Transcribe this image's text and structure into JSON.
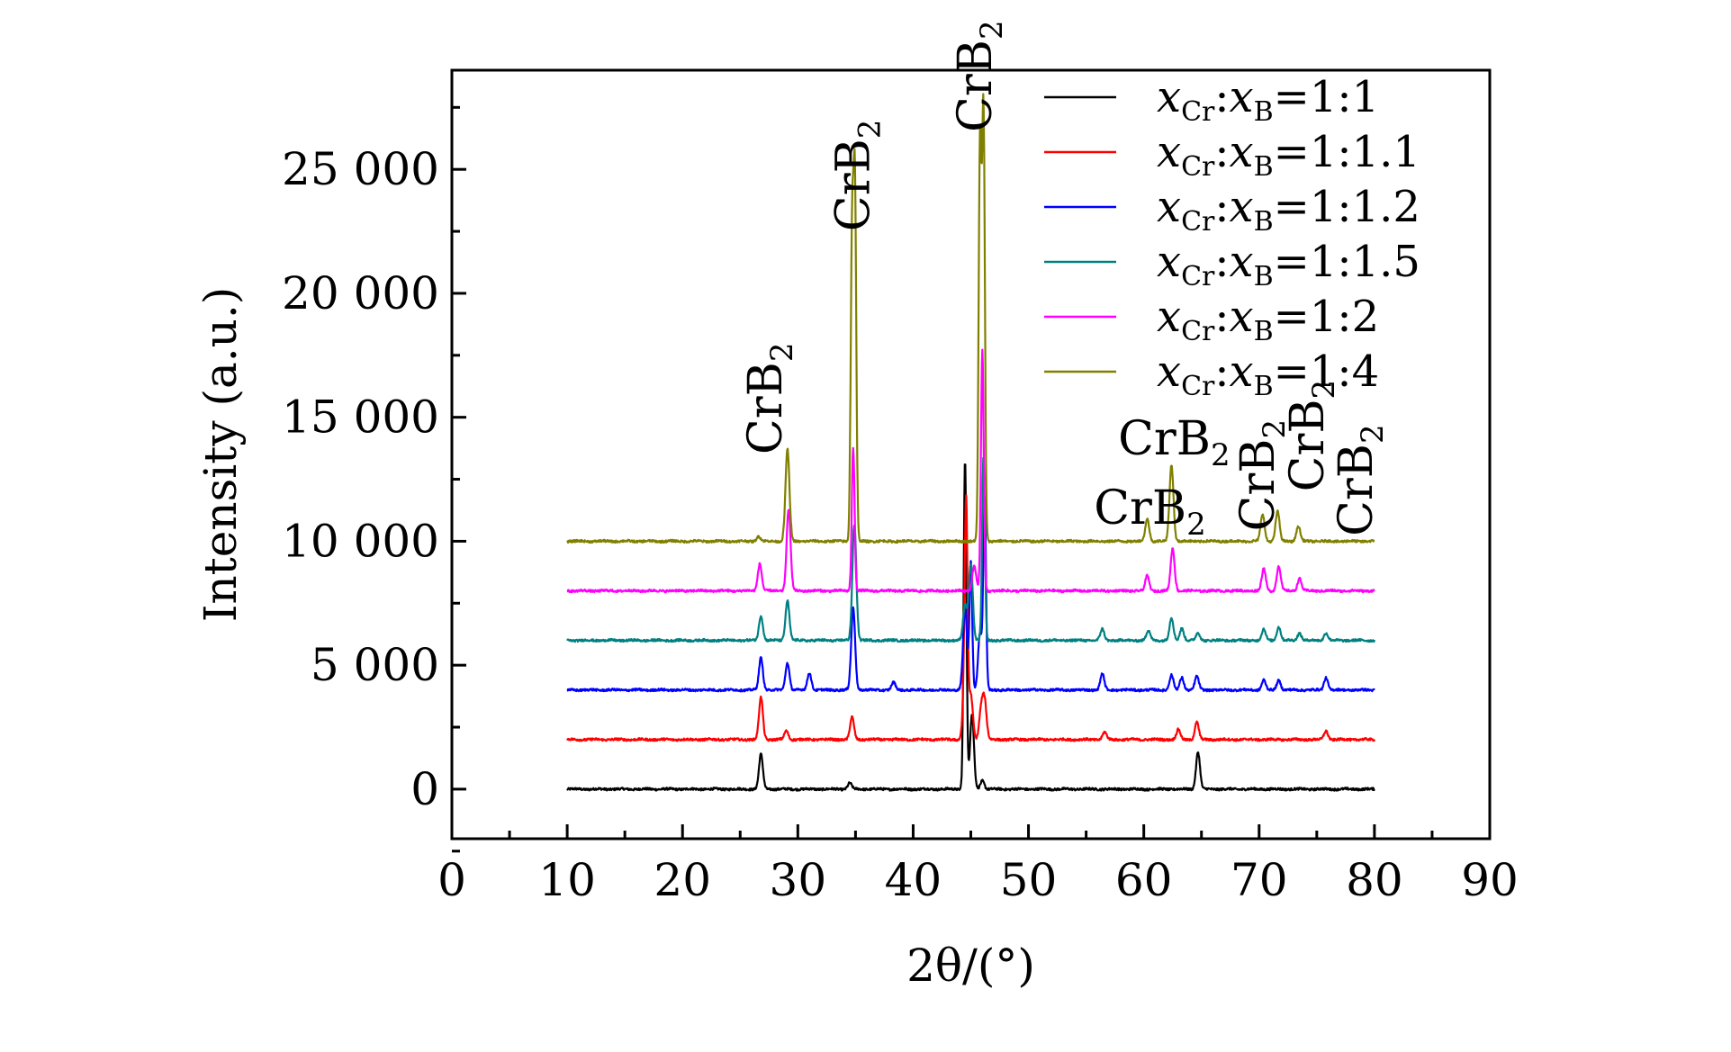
{
  "chart_data": {
    "type": "line",
    "xlabel": "2θ/(°)",
    "ylabel": "Intensity (a.u.)",
    "xlim": [
      0,
      90
    ],
    "ylim": [
      -2000,
      29000
    ],
    "xticks": [
      0,
      10,
      20,
      30,
      40,
      50,
      60,
      70,
      80,
      90
    ],
    "xtick_labels": [
      "0",
      "10",
      "20",
      "30",
      "40",
      "50",
      "60",
      "70",
      "80",
      "90"
    ],
    "yticks": [
      0,
      5000,
      10000,
      15000,
      20000,
      25000
    ],
    "ytick_labels": [
      "0",
      "5 000",
      "10 000",
      "15 000",
      "20 000",
      "25 000"
    ],
    "legend_position": "top-right",
    "legend_prefix": {
      "x1": "x",
      "sub1": "Cr",
      "sep": ":",
      "x2": "x",
      "sub2": "B"
    },
    "annotation_main": "CrB",
    "annotation_sub": "2",
    "annotations": [
      {
        "x": 27.0,
        "y": 13500,
        "rotated": true
      },
      {
        "x": 34.6,
        "y": 22500,
        "rotated": true
      },
      {
        "x": 45.2,
        "y": 26500,
        "rotated": true
      },
      {
        "x": 60.2,
        "y": 10700,
        "rotated": false
      },
      {
        "x": 62.3,
        "y": 13500,
        "rotated": false
      },
      {
        "x": 69.7,
        "y": 10400,
        "rotated": true
      },
      {
        "x": 74.0,
        "y": 12000,
        "rotated": true
      },
      {
        "x": 78.2,
        "y": 10200,
        "rotated": true
      }
    ],
    "series": [
      {
        "name": "=1:1",
        "color": "#000000",
        "baseline": 0,
        "x_range": [
          10,
          80
        ],
        "peaks": [
          [
            26.8,
            1400
          ],
          [
            34.5,
            250
          ],
          [
            44.5,
            13300
          ],
          [
            45.1,
            3000
          ],
          [
            46.0,
            350
          ],
          [
            64.7,
            1500
          ]
        ]
      },
      {
        "name": "=1:1.1",
        "color": "#ff0000",
        "baseline": 2000,
        "x_range": [
          10,
          80
        ],
        "peaks": [
          [
            26.8,
            1700
          ],
          [
            29.0,
            350
          ],
          [
            34.7,
            900
          ],
          [
            44.5,
            2600
          ],
          [
            44.6,
            7500
          ],
          [
            45.0,
            1800
          ],
          [
            45.9,
            1200
          ],
          [
            46.2,
            1500
          ],
          [
            56.6,
            300
          ],
          [
            63.0,
            400
          ],
          [
            64.6,
            700
          ],
          [
            75.8,
            350
          ]
        ]
      },
      {
        "name": "=1:1.2",
        "color": "#0000ff",
        "baseline": 4000,
        "x_range": [
          10,
          80
        ],
        "peaks": [
          [
            26.8,
            1300
          ],
          [
            29.1,
            1100
          ],
          [
            31.0,
            700
          ],
          [
            34.8,
            3300
          ],
          [
            38.3,
            300
          ],
          [
            44.5,
            3300
          ],
          [
            45.0,
            5200
          ],
          [
            45.8,
            2300
          ],
          [
            46.2,
            7600
          ],
          [
            56.4,
            650
          ],
          [
            62.4,
            600
          ],
          [
            63.3,
            500
          ],
          [
            64.6,
            550
          ],
          [
            70.4,
            400
          ],
          [
            71.7,
            400
          ],
          [
            75.8,
            500
          ]
        ]
      },
      {
        "name": "=1:1.5",
        "color": "#008080",
        "baseline": 6000,
        "x_range": [
          10,
          80
        ],
        "peaks": [
          [
            26.8,
            1000
          ],
          [
            29.1,
            1600
          ],
          [
            34.9,
            4700
          ],
          [
            44.5,
            1400
          ],
          [
            45.0,
            3100
          ],
          [
            46.1,
            7400
          ],
          [
            56.4,
            450
          ],
          [
            60.4,
            400
          ],
          [
            62.4,
            900
          ],
          [
            63.3,
            500
          ],
          [
            64.7,
            300
          ],
          [
            70.4,
            450
          ],
          [
            71.7,
            550
          ],
          [
            73.5,
            300
          ],
          [
            75.8,
            300
          ]
        ]
      },
      {
        "name": "=1:2",
        "color": "#ff00ff",
        "baseline": 8000,
        "x_range": [
          10,
          80
        ],
        "peaks": [
          [
            26.7,
            1100
          ],
          [
            29.2,
            3300
          ],
          [
            34.8,
            5800
          ],
          [
            45.3,
            1000
          ],
          [
            46.0,
            9700
          ],
          [
            60.3,
            600
          ],
          [
            62.5,
            1700
          ],
          [
            70.4,
            900
          ],
          [
            71.7,
            1000
          ],
          [
            73.5,
            500
          ]
        ]
      },
      {
        "name": "=1:4",
        "color": "#808000",
        "baseline": 10000,
        "x_range": [
          10,
          80
        ],
        "peaks": [
          [
            26.6,
            200
          ],
          [
            29.1,
            3700
          ],
          [
            34.7,
            12000
          ],
          [
            34.95,
            14000
          ],
          [
            45.8,
            16000
          ],
          [
            46.1,
            17200
          ],
          [
            60.3,
            900
          ],
          [
            62.4,
            3100
          ],
          [
            70.3,
            1100
          ],
          [
            71.6,
            1200
          ],
          [
            73.4,
            600
          ]
        ]
      }
    ]
  }
}
